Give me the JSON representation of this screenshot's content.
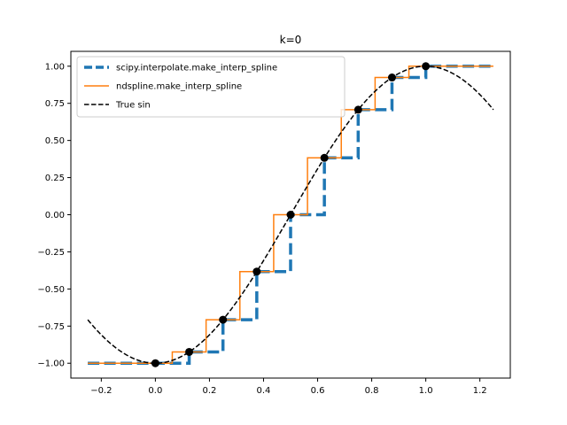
{
  "chart_data": {
    "type": "line",
    "title": "k=0",
    "xlabel": "",
    "ylabel": "",
    "xlim": [
      -0.3125,
      1.3125
    ],
    "ylim": [
      -1.1,
      1.1
    ],
    "xticks": [
      -0.2,
      0.0,
      0.2,
      0.4,
      0.6,
      0.8,
      1.0,
      1.2
    ],
    "xtick_labels": [
      "−0.2",
      "0.0",
      "0.2",
      "0.4",
      "0.6",
      "0.8",
      "1.0",
      "1.2"
    ],
    "yticks": [
      -1.0,
      -0.75,
      -0.5,
      -0.25,
      0.0,
      0.25,
      0.5,
      0.75,
      1.0
    ],
    "ytick_labels": [
      "−1.00",
      "−0.75",
      "−0.50",
      "−0.25",
      "0.00",
      "0.25",
      "0.50",
      "0.75",
      "1.00"
    ],
    "grid": false,
    "legend_position": "upper-left",
    "x_range_true": [
      -0.25,
      1.25
    ],
    "knots_x": [
      0.0,
      0.125,
      0.25,
      0.375,
      0.5,
      0.625,
      0.75,
      0.875,
      1.0
    ],
    "knots_y": [
      -1.0,
      -0.9239,
      -0.7071,
      -0.3827,
      0.0,
      0.3827,
      0.7071,
      0.9239,
      1.0
    ],
    "series": [
      {
        "name": "scipy.interpolate.make_interp_spline",
        "color": "#1f77b4",
        "style": "dashed-step",
        "x": [
          -0.25,
          0.0,
          0.125,
          0.125,
          0.25,
          0.25,
          0.375,
          0.375,
          0.5,
          0.5,
          0.625,
          0.625,
          0.75,
          0.75,
          0.875,
          0.875,
          1.0,
          1.0,
          1.25
        ],
        "y": [
          -1.0,
          -1.0,
          -1.0,
          -0.9239,
          -0.9239,
          -0.7071,
          -0.7071,
          -0.3827,
          -0.3827,
          0.0,
          0.0,
          0.3827,
          0.3827,
          0.7071,
          0.7071,
          0.9239,
          0.9239,
          1.0,
          1.0
        ]
      },
      {
        "name": "ndspline.make_interp_spline",
        "color": "#ff7f0e",
        "style": "solid-step",
        "x": [
          -0.25,
          0.0625,
          0.0625,
          0.1875,
          0.1875,
          0.3125,
          0.3125,
          0.4375,
          0.4375,
          0.5625,
          0.5625,
          0.6875,
          0.6875,
          0.8125,
          0.8125,
          0.9375,
          0.9375,
          1.25
        ],
        "y": [
          -1.0,
          -1.0,
          -0.9239,
          -0.9239,
          -0.7071,
          -0.7071,
          -0.3827,
          -0.3827,
          0.0,
          0.0,
          0.3827,
          0.3827,
          0.7071,
          0.7071,
          0.9239,
          0.9239,
          1.0,
          1.0
        ]
      },
      {
        "name": "True sin",
        "color": "#000000",
        "style": "dashed",
        "function": "-cos(pi*x)"
      }
    ]
  }
}
